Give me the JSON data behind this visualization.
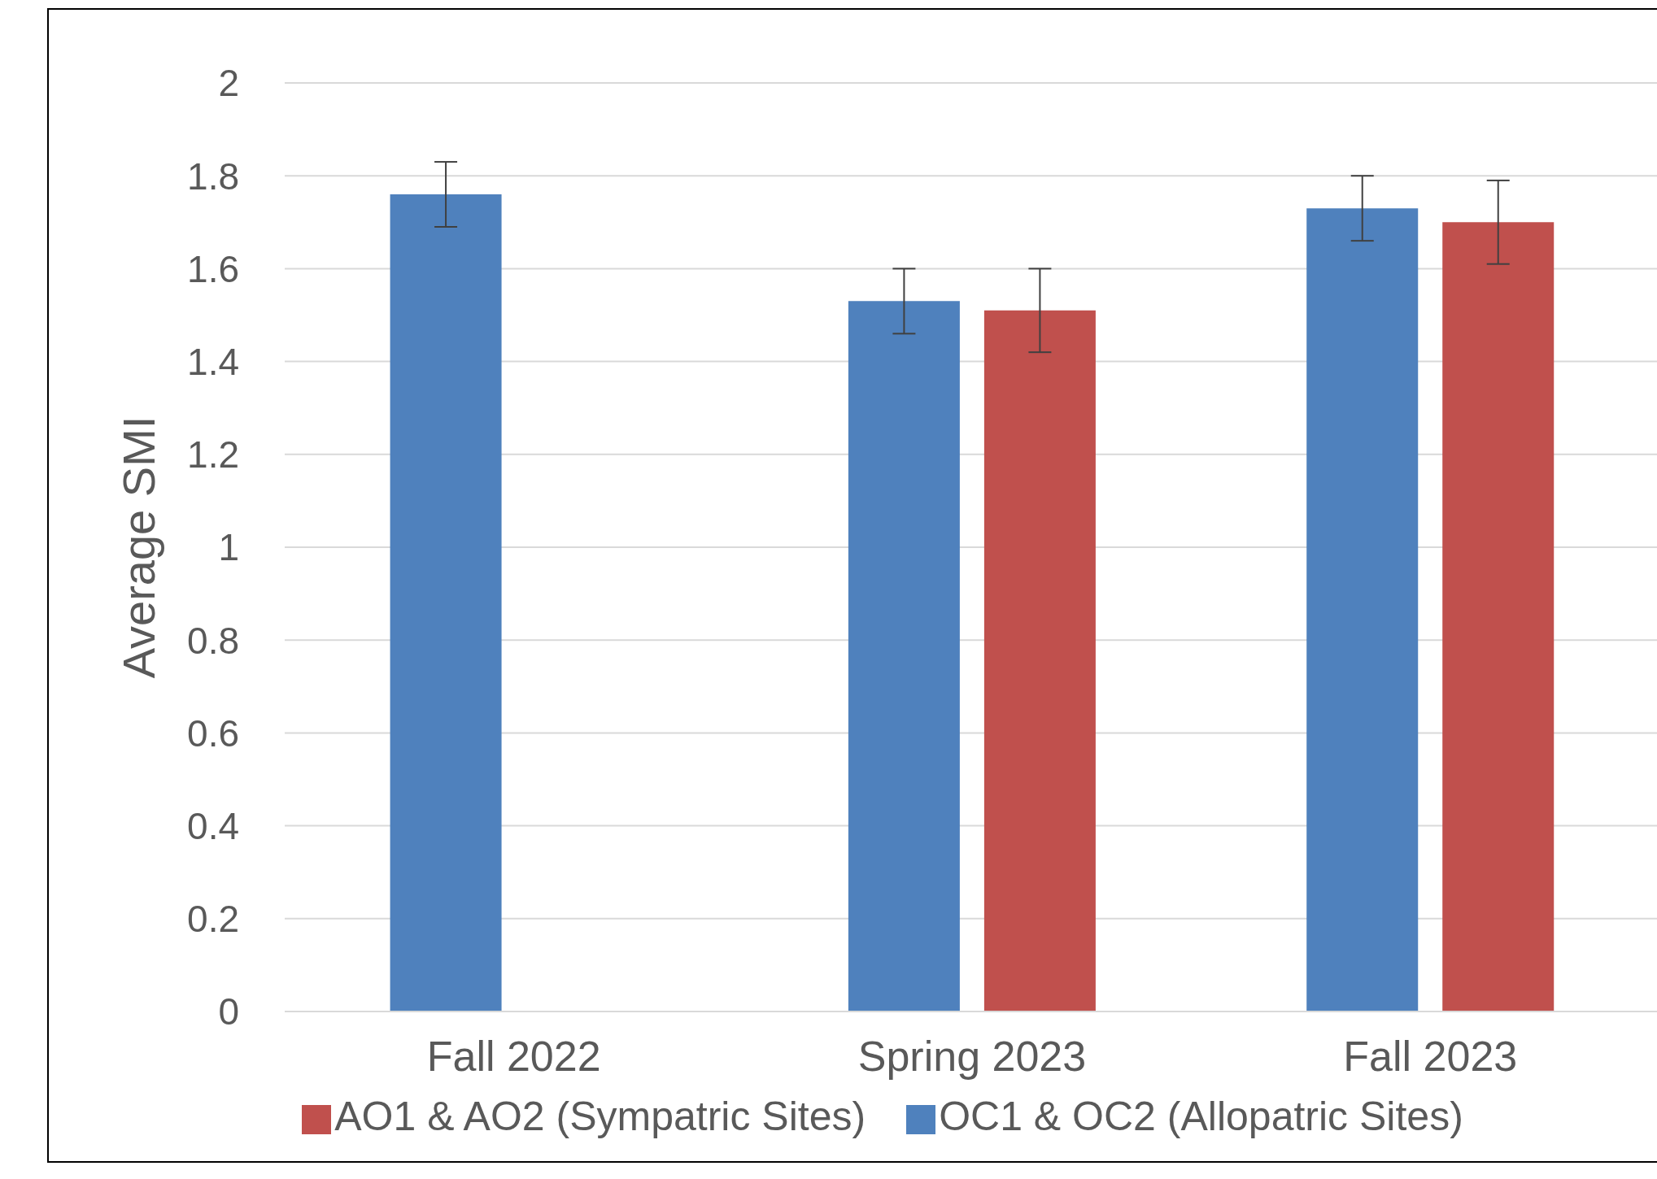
{
  "chart_data": {
    "type": "bar",
    "ylabel": "Average SMI",
    "categories": [
      "Fall 2022",
      "Spring 2023",
      "Fall 2023"
    ],
    "series": [
      {
        "name": "OC1 & OC2 (Allopatric Sites)",
        "color": "#4f81bd",
        "values": [
          1.76,
          1.53,
          1.73
        ],
        "errors": [
          0.07,
          0.07,
          0.07
        ]
      },
      {
        "name": "AO1 & AO2 (Sympatric Sites)",
        "color": "#c0504d",
        "values": [
          null,
          1.51,
          1.7
        ],
        "errors": [
          null,
          0.09,
          0.09
        ]
      }
    ],
    "ylim": [
      0,
      2
    ],
    "yticks": [
      0,
      0.2,
      0.4,
      0.6,
      0.8,
      1,
      1.2,
      1.4,
      1.6,
      1.8,
      2
    ],
    "grid": "y",
    "legend": "bottom"
  }
}
